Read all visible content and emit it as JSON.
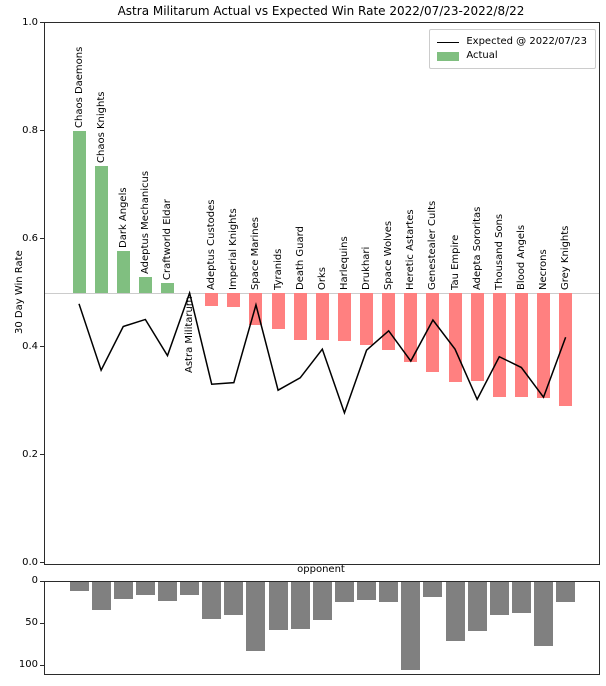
{
  "title": "Astra Militarum Actual vs Expected Win Rate 2022/07/23-2022/8/22",
  "legend": {
    "expected_label": "Expected @ 2022/07/23",
    "actual_label": "Actual"
  },
  "axes": {
    "ylabel": "30 Day Win Rate",
    "xlabel": "opponent",
    "win_rate_ticks": [
      1.0,
      0.8,
      0.6,
      0.4,
      0.2,
      0.0
    ],
    "count_ticks": [
      0,
      50,
      100
    ]
  },
  "colors": {
    "actual_above": "#80bf80",
    "actual_below": "#ff8080",
    "expected_line": "#000000",
    "count_bar": "#808080",
    "baseline_line": "#cccccc",
    "spine": "#2b2b2b"
  },
  "chart_data": [
    {
      "type": "bar",
      "title": "Astra Militarum Actual vs Expected Win Rate 2022/07/23-2022/8/22",
      "xlabel": "opponent",
      "ylabel": "30 Day Win Rate",
      "ylim": [
        0.0,
        1.0
      ],
      "baseline": 0.5,
      "grid": false,
      "legend_position": "upper right",
      "categories": [
        "Chaos Daemons",
        "Chaos Knights",
        "Dark Angels",
        "Adeptus Mechanicus",
        "Craftworld Eldar",
        "Astra Militarum",
        "Adeptus Custodes",
        "Imperial Knights",
        "Space Marines",
        "Tyranids",
        "Death Guard",
        "Orks",
        "Harlequins",
        "Drukhari",
        "Space Wolves",
        "Heretic Astartes",
        "Genestealer Cults",
        "Tau Empire",
        "Adepta Sororitas",
        "Thousand Sons",
        "Blood Angels",
        "Necrons",
        "Grey Knights"
      ],
      "series": [
        {
          "name": "Actual",
          "type": "bar",
          "values": [
            0.8,
            0.735,
            0.578,
            0.53,
            0.519,
            0.5,
            0.476,
            0.474,
            0.441,
            0.433,
            0.413,
            0.413,
            0.412,
            0.403,
            0.394,
            0.372,
            0.353,
            0.336,
            0.337,
            0.307,
            0.307,
            0.305,
            0.291
          ]
        },
        {
          "name": "Expected @ 2022/07/23",
          "type": "line",
          "values": [
            0.48,
            0.357,
            0.438,
            0.451,
            0.384,
            0.5,
            0.331,
            0.334,
            0.478,
            0.32,
            0.343,
            0.396,
            0.278,
            0.394,
            0.43,
            0.374,
            0.45,
            0.396,
            0.303,
            0.382,
            0.362,
            0.307,
            0.418
          ]
        }
      ]
    },
    {
      "type": "bar",
      "xlabel": "opponent",
      "ylabel": "",
      "ylim": [
        0,
        110
      ],
      "y_inverted": true,
      "yticks": [
        0,
        50,
        100
      ],
      "categories": [
        "Chaos Daemons",
        "Chaos Knights",
        "Dark Angels",
        "Adeptus Mechanicus",
        "Craftworld Eldar",
        "Astra Militarum",
        "Adeptus Custodes",
        "Imperial Knights",
        "Space Marines",
        "Tyranids",
        "Death Guard",
        "Orks",
        "Harlequins",
        "Drukhari",
        "Space Wolves",
        "Heretic Astartes",
        "Genestealer Cults",
        "Tau Empire",
        "Adepta Sororitas",
        "Thousand Sons",
        "Blood Angels",
        "Necrons",
        "Grey Knights"
      ],
      "values": [
        11,
        34,
        20,
        16,
        23,
        16,
        44,
        39,
        83,
        57,
        56,
        45,
        24,
        22,
        24,
        105,
        18,
        70,
        58,
        39,
        37,
        77,
        24
      ]
    }
  ]
}
